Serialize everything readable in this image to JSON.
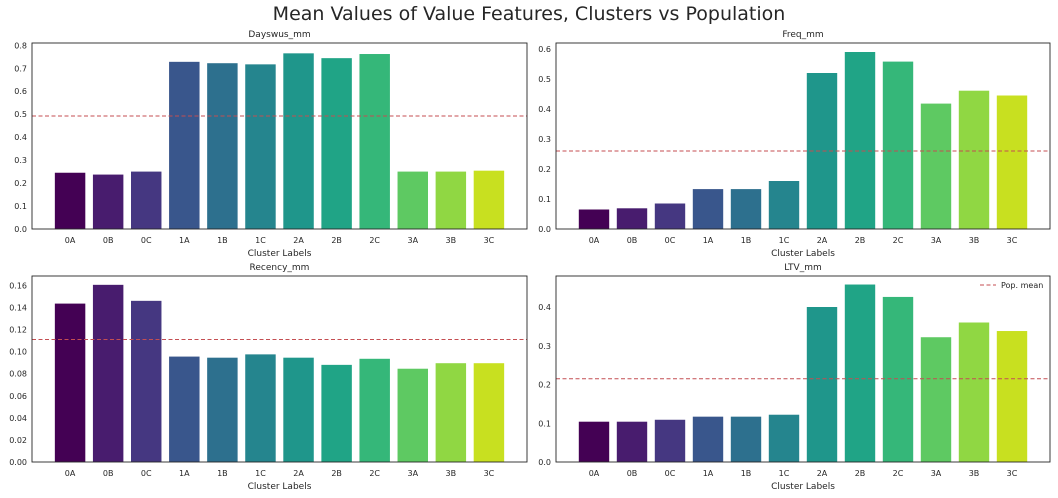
{
  "figure": {
    "title": "Mean Values of Value Features, Clusters vs Population"
  },
  "colors": {
    "bars": [
      "#440154",
      "#481c6e",
      "#453781",
      "#39568c",
      "#2d708e",
      "#25858e",
      "#1f968b",
      "#20a486",
      "#35b779",
      "#5ec962",
      "#90d743",
      "#c8e020"
    ],
    "pop_mean_line": "#c44e52"
  },
  "chart_data": [
    {
      "type": "bar",
      "title": "Dayswus_mm",
      "xlabel": "Cluster Labels",
      "ylabel": "",
      "categories": [
        "0A",
        "0B",
        "0C",
        "1A",
        "1B",
        "1C",
        "2A",
        "2B",
        "2C",
        "3A",
        "3B",
        "3C"
      ],
      "values": [
        0.245,
        0.237,
        0.25,
        0.728,
        0.722,
        0.717,
        0.765,
        0.744,
        0.762,
        0.25,
        0.25,
        0.254
      ],
      "population_mean": 0.492,
      "ylim": [
        0,
        0.81
      ],
      "yticks": [
        0.0,
        0.1,
        0.2,
        0.3,
        0.4,
        0.5,
        0.6,
        0.7,
        0.8
      ],
      "ytick_labels": [
        "0.0",
        "0.1",
        "0.2",
        "0.3",
        "0.4",
        "0.5",
        "0.6",
        "0.7",
        "0.8"
      ],
      "grid": false,
      "legend": null
    },
    {
      "type": "bar",
      "title": "Freq_mm",
      "xlabel": "Cluster Labels",
      "ylabel": "",
      "categories": [
        "0A",
        "0B",
        "0C",
        "1A",
        "1B",
        "1C",
        "2A",
        "2B",
        "2C",
        "3A",
        "3B",
        "3C"
      ],
      "values": [
        0.065,
        0.069,
        0.085,
        0.133,
        0.133,
        0.16,
        0.52,
        0.59,
        0.558,
        0.418,
        0.461,
        0.445
      ],
      "population_mean": 0.26,
      "ylim": [
        0,
        0.62
      ],
      "yticks": [
        0.0,
        0.1,
        0.2,
        0.3,
        0.4,
        0.5,
        0.6
      ],
      "ytick_labels": [
        "0.0",
        "0.1",
        "0.2",
        "0.3",
        "0.4",
        "0.5",
        "0.6"
      ],
      "grid": false,
      "legend": null
    },
    {
      "type": "bar",
      "title": "Recency_mm",
      "xlabel": "Cluster Labels",
      "ylabel": "",
      "categories": [
        "0A",
        "0B",
        "0C",
        "1A",
        "1B",
        "1C",
        "2A",
        "2B",
        "2C",
        "3A",
        "3B",
        "3C"
      ],
      "values": [
        0.1435,
        0.1605,
        0.146,
        0.0955,
        0.0945,
        0.0975,
        0.0945,
        0.088,
        0.0935,
        0.0845,
        0.0895,
        0.0895
      ],
      "population_mean": 0.111,
      "ylim": [
        0,
        0.1685
      ],
      "yticks": [
        0.0,
        0.02,
        0.04,
        0.06,
        0.08,
        0.1,
        0.12,
        0.14,
        0.16
      ],
      "ytick_labels": [
        "0.00",
        "0.02",
        "0.04",
        "0.06",
        "0.08",
        "0.10",
        "0.12",
        "0.14",
        "0.16"
      ],
      "grid": false,
      "legend": null
    },
    {
      "type": "bar",
      "title": "LTV_mm",
      "xlabel": "Cluster Labels",
      "ylabel": "",
      "categories": [
        "0A",
        "0B",
        "0C",
        "1A",
        "1B",
        "1C",
        "2A",
        "2B",
        "2C",
        "3A",
        "3B",
        "3C"
      ],
      "values": [
        0.104,
        0.104,
        0.109,
        0.117,
        0.117,
        0.122,
        0.4,
        0.458,
        0.426,
        0.322,
        0.36,
        0.338
      ],
      "population_mean": 0.215,
      "ylim": [
        0,
        0.48
      ],
      "yticks": [
        0.0,
        0.1,
        0.2,
        0.3,
        0.4
      ],
      "ytick_labels": [
        "0.0",
        "0.1",
        "0.2",
        "0.3",
        "0.4"
      ],
      "grid": false,
      "legend": {
        "label": "Pop. mean",
        "placement": "upper-right"
      }
    }
  ]
}
